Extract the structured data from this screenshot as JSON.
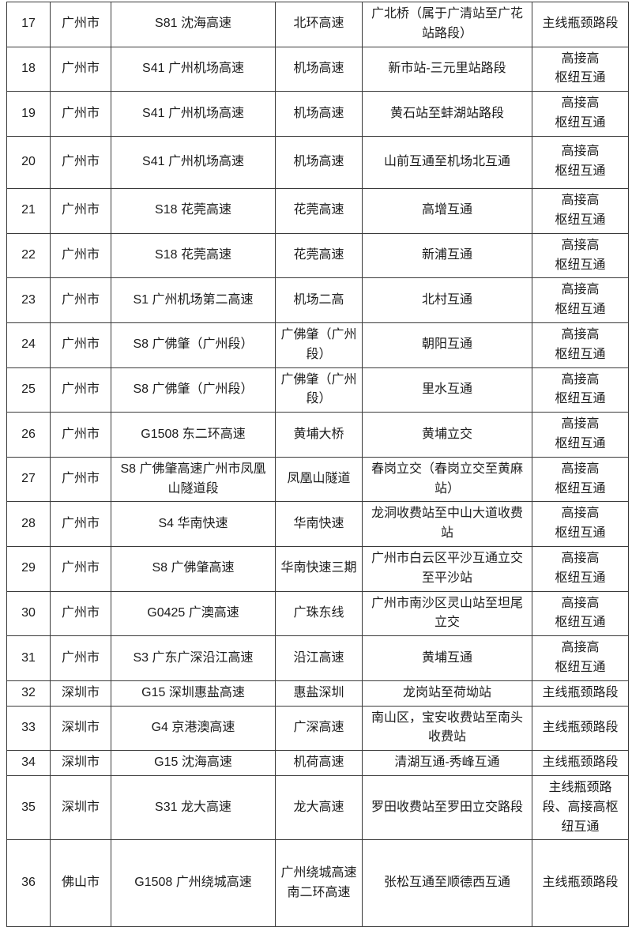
{
  "table": {
    "rows": [
      {
        "num": "17",
        "city": "广州市",
        "road": "S81 沈海高速",
        "alias": "北环高速",
        "section": "广北桥（属于广清站至广花站路段）",
        "type": "主线瓶颈路段"
      },
      {
        "num": "18",
        "city": "广州市",
        "road": "S41 广州机场高速",
        "alias": "机场高速",
        "section": "新市站-三元里站路段",
        "type": "高接高\n枢纽互通"
      },
      {
        "num": "19",
        "city": "广州市",
        "road": "S41 广州机场高速",
        "alias": "机场高速",
        "section": "黄石站至蚌湖站路段",
        "type": "高接高\n枢纽互通"
      },
      {
        "num": "20",
        "city": "广州市",
        "road": "S41 广州机场高速",
        "alias": "机场高速",
        "section": "山前互通至机场北互通",
        "type": "高接高\n枢纽互通"
      },
      {
        "num": "21",
        "city": "广州市",
        "road": "S18 花莞高速",
        "alias": "花莞高速",
        "section": "高增互通",
        "type": "高接高\n枢纽互通"
      },
      {
        "num": "22",
        "city": "广州市",
        "road": "S18 花莞高速",
        "alias": "花莞高速",
        "section": "新浦互通",
        "type": "高接高\n枢纽互通"
      },
      {
        "num": "23",
        "city": "广州市",
        "road": "S1 广州机场第二高速",
        "alias": "机场二高",
        "section": "北村互通",
        "type": "高接高\n枢纽互通"
      },
      {
        "num": "24",
        "city": "广州市",
        "road": "S8 广佛肇（广州段）",
        "alias": "广佛肇（广州段）",
        "section": "朝阳互通",
        "type": "高接高\n枢纽互通"
      },
      {
        "num": "25",
        "city": "广州市",
        "road": "S8 广佛肇（广州段）",
        "alias": "广佛肇（广州段）",
        "section": "里水互通",
        "type": "高接高\n枢纽互通"
      },
      {
        "num": "26",
        "city": "广州市",
        "road": "G1508 东二环高速",
        "alias": "黄埔大桥",
        "section": "黄埔立交",
        "type": "高接高\n枢纽互通"
      },
      {
        "num": "27",
        "city": "广州市",
        "road": "S8 广佛肇高速广州市凤凰山隧道段",
        "alias": "凤凰山隧道",
        "section": "春岗立交（春岗立交至黄麻站）",
        "type": "高接高\n枢纽互通"
      },
      {
        "num": "28",
        "city": "广州市",
        "road": "S4 华南快速",
        "alias": "华南快速",
        "section": "龙洞收费站至中山大道收费站",
        "type": "高接高\n枢纽互通"
      },
      {
        "num": "29",
        "city": "广州市",
        "road": "S8 广佛肇高速",
        "alias": "华南快速三期",
        "section": "广州市白云区平沙互通立交至平沙站",
        "type": "高接高\n枢纽互通"
      },
      {
        "num": "30",
        "city": "广州市",
        "road": "G0425 广澳高速",
        "alias": "广珠东线",
        "section": "广州市南沙区灵山站至坦尾立交",
        "type": "高接高\n枢纽互通"
      },
      {
        "num": "31",
        "city": "广州市",
        "road": "S3 广东广深沿江高速",
        "alias": "沿江高速",
        "section": "黄埔互通",
        "type": "高接高\n枢纽互通"
      },
      {
        "num": "32",
        "city": "深圳市",
        "road": "G15 深圳惠盐高速",
        "alias": "惠盐深圳",
        "section": "龙岗站至荷坳站",
        "type": "主线瓶颈路段"
      },
      {
        "num": "33",
        "city": "深圳市",
        "road": "G4 京港澳高速",
        "alias": "广深高速",
        "section": "南山区，宝安收费站至南头收费站",
        "type": "主线瓶颈路段"
      },
      {
        "num": "34",
        "city": "深圳市",
        "road": "G15 沈海高速",
        "alias": "机荷高速",
        "section": "清湖互通-秀峰互通",
        "type": "主线瓶颈路段"
      },
      {
        "num": "35",
        "city": "深圳市",
        "road": "S31 龙大高速",
        "alias": "龙大高速",
        "section": "罗田收费站至罗田立交路段",
        "type": "主线瓶颈路段、高接高枢纽互通"
      },
      {
        "num": "36",
        "city": "佛山市",
        "road": "G1508 广州绕城高速",
        "alias": "广州绕城高速南二环高速",
        "section": "张松互通至顺德西互通",
        "type": "主线瓶颈路段"
      }
    ]
  }
}
